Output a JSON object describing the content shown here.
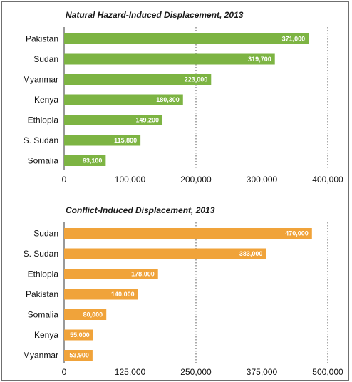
{
  "chart_data": [
    {
      "type": "bar",
      "orientation": "horizontal",
      "title": "Natural Hazard-Induced Displacement, 2013",
      "categories": [
        "Pakistan",
        "Sudan",
        "Myanmar",
        "Kenya",
        "Ethiopia",
        "S. Sudan",
        "Somalia"
      ],
      "values": [
        371000,
        319700,
        223000,
        180300,
        149200,
        115800,
        63100
      ],
      "value_labels": [
        "371,000",
        "319,700",
        "223,000",
        "180,300",
        "149,200",
        "115,800",
        "63,100"
      ],
      "xlim": [
        0,
        400000
      ],
      "ticks": [
        0,
        100000,
        200000,
        300000,
        400000
      ],
      "tick_labels": [
        "0",
        "100,000",
        "200,000",
        "300,000",
        "400,000"
      ],
      "grid": "vertical-dotted",
      "color": "#7db443"
    },
    {
      "type": "bar",
      "orientation": "horizontal",
      "title": "Conflict-Induced Displacement, 2013",
      "categories": [
        "Sudan",
        "S. Sudan",
        "Ethiopia",
        "Pakistan",
        "Somalia",
        "Kenya",
        "Myanmar"
      ],
      "values": [
        470000,
        383000,
        178000,
        140000,
        80000,
        55000,
        53900
      ],
      "value_labels": [
        "470,000",
        "383,000",
        "178,000",
        "140,000",
        "80,000",
        "55,000",
        "53,900"
      ],
      "xlim": [
        0,
        500000
      ],
      "ticks": [
        0,
        125000,
        250000,
        375000,
        500000
      ],
      "tick_labels": [
        "0",
        "125,000",
        "250,000",
        "375,000",
        "500,000"
      ],
      "grid": "vertical-dotted",
      "color": "#f0a33a"
    }
  ]
}
